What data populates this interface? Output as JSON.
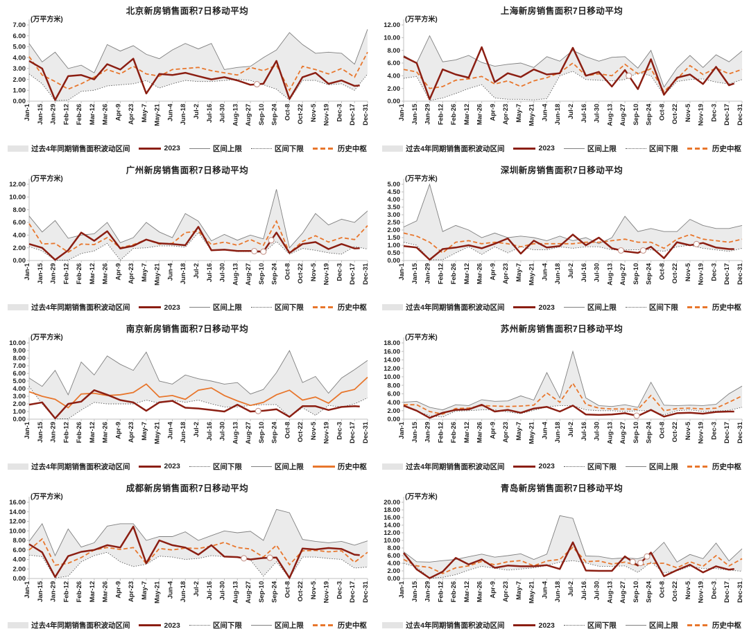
{
  "unit_label": "(万平方米)",
  "x_ticks": [
    "Jan-1",
    "Jan-15",
    "Jan-29",
    "Feb-12",
    "Feb-26",
    "Mar-12",
    "Mar-26",
    "Apr-9",
    "Apr-23",
    "May-7",
    "May-21",
    "Jun-4",
    "Jun-18",
    "Jul-2",
    "Jul-16",
    "Jul-30",
    "Aug-13",
    "Aug-27",
    "Sep-10",
    "Sep-24",
    "Oct-8",
    "Oct-22",
    "Nov-5",
    "Nov-19",
    "Dec-3",
    "Dec-17",
    "Dec-31"
  ],
  "legend_labels": {
    "band": "过去4年同期销售面积波动区间",
    "y2023": "2023",
    "upper": "区间上限",
    "lower": "区间下限",
    "central": "历史中枢"
  },
  "colors": {
    "line_2023": "#8B1E12",
    "central": "#E8762C",
    "band_fill": "#EBEBEB",
    "upper_line": "#7F7F7F",
    "lower_line": "#595959",
    "axis": "#BFBFBF",
    "text": "#1F1F1F",
    "marker_stroke": "#C49389"
  },
  "chart_data": [
    {
      "type": "line",
      "name": "beijing",
      "title": "北京新房销售面积7日移动平均",
      "unit": "(万平方米)",
      "ylim": [
        0,
        7
      ],
      "ytick_step": 1,
      "legend_order": [
        "band",
        "y2023",
        "upper",
        "lower",
        "central"
      ],
      "central_style": "dashed",
      "end_2023": 25.4,
      "markers": [
        17.5
      ],
      "series": {
        "y2023": [
          3.7,
          3.0,
          0.1,
          2.3,
          2.4,
          2.0,
          3.4,
          2.9,
          3.9,
          0.7,
          2.5,
          2.4,
          2.6,
          2.3,
          2.0,
          2.2,
          1.9,
          1.5,
          1.6,
          3.7,
          0.2,
          2.2,
          2.6,
          1.6,
          1.9,
          1.4,
          1.5
        ],
        "upper": [
          5.3,
          3.6,
          4.5,
          3.0,
          3.3,
          2.6,
          5.2,
          4.6,
          5.1,
          4.3,
          3.9,
          4.7,
          5.3,
          4.8,
          5.3,
          2.9,
          3.1,
          3.2,
          4.0,
          4.7,
          6.3,
          5.2,
          4.4,
          4.5,
          4.4,
          3.4,
          6.6
        ],
        "lower": [
          2.5,
          1.6,
          0.05,
          0.1,
          0.9,
          1.0,
          1.4,
          1.5,
          1.6,
          1.9,
          1.2,
          1.6,
          1.9,
          1.8,
          1.8,
          1.9,
          2.0,
          1.9,
          1.5,
          1.1,
          0.1,
          1.9,
          1.9,
          1.5,
          1.6,
          1.0,
          2.5
        ],
        "central": [
          4.1,
          2.4,
          1.8,
          1.1,
          1.6,
          2.2,
          2.9,
          2.5,
          3.2,
          2.5,
          2.3,
          2.9,
          3.0,
          3.1,
          2.8,
          2.6,
          2.4,
          3.1,
          2.8,
          3.3,
          1.0,
          3.2,
          2.9,
          2.5,
          3.0,
          2.2,
          4.5
        ]
      }
    },
    {
      "type": "line",
      "name": "shanghai",
      "title": "上海新房销售面积7日移动平均",
      "unit": "(万平方米)",
      "ylim": [
        0,
        12
      ],
      "ytick_step": 2,
      "legend_order": [
        "band",
        "y2023",
        "upper",
        "lower",
        "central"
      ],
      "central_style": "dashed",
      "end_2023": 25.4,
      "markers": [
        17.3
      ],
      "series": {
        "y2023": [
          7.0,
          6.0,
          0.3,
          5.0,
          4.2,
          3.7,
          8.5,
          3.0,
          4.4,
          3.8,
          5.0,
          4.2,
          4.4,
          8.4,
          4.0,
          4.6,
          2.3,
          4.9,
          1.9,
          6.6,
          1.0,
          3.7,
          4.2,
          2.7,
          5.4,
          2.5,
          3.2
        ],
        "upper": [
          7.2,
          6.0,
          10.3,
          6.2,
          6.5,
          7.2,
          6.1,
          5.5,
          5.8,
          6.0,
          5.3,
          7.0,
          6.3,
          8.0,
          7.0,
          6.3,
          6.9,
          7.0,
          5.2,
          8.0,
          2.2,
          5.2,
          7.2,
          5.3,
          7.3,
          6.2,
          7.9
        ],
        "lower": [
          3.6,
          3.9,
          0.1,
          0.5,
          1.2,
          2.0,
          2.6,
          0.5,
          0.3,
          0.3,
          0.2,
          0.4,
          4.0,
          4.7,
          3.4,
          3.3,
          3.2,
          3.4,
          4.5,
          4.0,
          1.0,
          3.1,
          3.4,
          3.5,
          3.0,
          2.7,
          3.4
        ],
        "central": [
          5.0,
          4.6,
          2.0,
          2.3,
          3.3,
          3.5,
          3.9,
          2.7,
          3.2,
          2.3,
          3.2,
          3.7,
          4.5,
          6.0,
          4.0,
          4.3,
          4.0,
          5.8,
          4.3,
          5.1,
          1.5,
          3.5,
          5.6,
          4.2,
          5.2,
          4.3,
          5.0
        ]
      }
    },
    {
      "type": "line",
      "name": "guangzhou",
      "title": "广州新房销售面积7日移动平均",
      "unit": "(万平方米)",
      "ylim": [
        0,
        12
      ],
      "ytick_step": 2,
      "legend_order": [
        "band",
        "y2023",
        "upper",
        "lower",
        "central"
      ],
      "central_style": "dashed",
      "end_2023": 25.4,
      "markers": [
        17.3,
        18.0,
        18.6
      ],
      "series": {
        "y2023": [
          2.6,
          2.0,
          0.1,
          1.6,
          4.4,
          3.1,
          4.6,
          1.9,
          2.3,
          3.3,
          2.7,
          2.6,
          2.4,
          5.3,
          1.6,
          1.7,
          1.5,
          1.5,
          1.4,
          4.4,
          1.2,
          2.6,
          2.9,
          1.8,
          2.6,
          1.9,
          2.0
        ],
        "upper": [
          7.0,
          4.5,
          6.3,
          3.5,
          4.0,
          4.2,
          6.0,
          2.8,
          3.6,
          6.0,
          4.5,
          3.6,
          7.4,
          6.2,
          3.1,
          4.1,
          3.2,
          4.0,
          3.4,
          11.2,
          2.0,
          4.3,
          7.4,
          5.6,
          6.5,
          6.0,
          7.8
        ],
        "lower": [
          2.2,
          1.5,
          0.05,
          0.05,
          1.1,
          1.5,
          2.7,
          0.05,
          1.9,
          2.0,
          2.3,
          2.3,
          2.1,
          4.4,
          1.6,
          1.7,
          1.4,
          1.4,
          1.2,
          3.0,
          1.0,
          1.9,
          1.6,
          1.2,
          1.0,
          2.2,
          1.8
        ],
        "central": [
          5.8,
          2.6,
          2.7,
          1.3,
          2.6,
          2.5,
          3.6,
          2.0,
          2.5,
          3.3,
          2.6,
          2.7,
          4.4,
          4.6,
          2.5,
          2.9,
          2.4,
          3.3,
          2.4,
          6.2,
          1.2,
          3.0,
          3.9,
          2.9,
          3.6,
          3.3,
          5.5
        ]
      }
    },
    {
      "type": "line",
      "name": "shenzhen",
      "title": "深圳新房销售面积7日移动平均",
      "unit": "(万平方米)",
      "ylim": [
        0,
        5
      ],
      "ytick_step": 0.5,
      "legend_order": [
        "band",
        "y2023",
        "upper",
        "lower",
        "central"
      ],
      "central_style": "dashed",
      "end_2023": 25.4,
      "markers": [
        16.7,
        18.4,
        22.5
      ],
      "series": {
        "y2023": [
          0.95,
          0.85,
          0.05,
          0.75,
          0.85,
          1.0,
          0.8,
          1.1,
          1.45,
          0.45,
          1.3,
          0.85,
          0.95,
          1.7,
          1.0,
          1.5,
          0.8,
          0.6,
          0.5,
          0.9,
          0.15,
          1.2,
          1.0,
          1.15,
          0.85,
          0.75,
          0.75
        ],
        "upper": [
          2.2,
          2.6,
          5.0,
          1.9,
          2.3,
          2.0,
          1.5,
          1.8,
          1.5,
          1.6,
          1.5,
          1.3,
          1.6,
          1.3,
          1.5,
          1.1,
          1.5,
          2.9,
          1.9,
          2.1,
          1.9,
          1.9,
          2.7,
          2.3,
          2.1,
          2.1,
          2.3
        ],
        "lower": [
          1.2,
          1.0,
          0.05,
          0.05,
          0.5,
          0.9,
          0.4,
          0.9,
          0.5,
          0.9,
          0.7,
          0.7,
          0.9,
          0.8,
          0.9,
          0.9,
          0.7,
          0.7,
          0.7,
          0.7,
          0.6,
          0.9,
          1.0,
          0.8,
          0.7,
          0.6,
          0.8
        ],
        "central": [
          1.8,
          1.6,
          1.2,
          0.5,
          1.2,
          1.3,
          1.1,
          1.2,
          1.1,
          0.9,
          1.1,
          1.1,
          1.1,
          1.1,
          1.2,
          1.2,
          1.3,
          1.4,
          1.2,
          1.2,
          0.8,
          1.4,
          1.7,
          1.4,
          1.3,
          1.2,
          1.4
        ]
      }
    },
    {
      "type": "line",
      "name": "nanjing",
      "title": "南京新房销售面积7日移动平均",
      "unit": "(万平方米)",
      "ylim": [
        0,
        10
      ],
      "ytick_step": 1,
      "legend_order": [
        "band",
        "y2023",
        "lower",
        "upper",
        "central"
      ],
      "central_style": "solid",
      "end_2023": 25.4,
      "markers": [
        17.6
      ],
      "series": {
        "y2023": [
          1.9,
          2.2,
          0.1,
          2.0,
          2.3,
          3.8,
          3.2,
          2.5,
          2.2,
          1.1,
          2.2,
          2.4,
          1.5,
          1.4,
          1.2,
          1.0,
          1.9,
          1.0,
          1.1,
          1.3,
          0.3,
          1.7,
          1.7,
          1.2,
          1.6,
          1.7,
          1.6
        ],
        "upper": [
          5.4,
          4.3,
          6.4,
          3.2,
          7.5,
          5.8,
          8.3,
          7.2,
          6.4,
          8.8,
          5.0,
          4.6,
          5.8,
          5.3,
          5.0,
          4.6,
          4.8,
          3.3,
          3.9,
          6.1,
          9.0,
          4.8,
          5.6,
          3.4,
          5.4,
          6.5,
          7.7
        ],
        "lower": [
          4.3,
          2.0,
          0.05,
          0.05,
          1.2,
          2.2,
          2.0,
          2.0,
          2.0,
          2.5,
          2.1,
          2.5,
          2.2,
          2.5,
          2.0,
          1.6,
          1.6,
          1.8,
          1.9,
          1.9,
          0.3,
          1.5,
          0.5,
          1.8,
          1.6,
          2.0,
          2.8
        ],
        "central": [
          3.6,
          3.0,
          2.6,
          1.5,
          3.3,
          3.4,
          3.1,
          3.2,
          3.5,
          4.6,
          2.9,
          3.1,
          2.6,
          3.8,
          4.1,
          3.1,
          2.4,
          1.8,
          2.2,
          3.2,
          3.8,
          2.5,
          2.9,
          2.1,
          3.5,
          3.9,
          5.5
        ]
      }
    },
    {
      "type": "line",
      "name": "suzhou",
      "title": "苏州新房销售面积7日移动平均",
      "unit": "(万平方米)",
      "ylim": [
        0,
        18
      ],
      "ytick_step": 2,
      "legend_order": [
        "band",
        "y2023",
        "lower",
        "upper",
        "central"
      ],
      "central_style": "dashed",
      "end_2023": 25.4,
      "markers": [
        17.9
      ],
      "series": {
        "y2023": [
          3.2,
          2.0,
          0.3,
          1.5,
          2.2,
          2.3,
          3.4,
          1.8,
          2.2,
          1.5,
          2.5,
          2.9,
          1.8,
          3.2,
          1.1,
          1.0,
          1.1,
          1.4,
          0.75,
          2.2,
          0.6,
          1.4,
          1.5,
          1.3,
          1.7,
          1.8,
          1.8
        ],
        "upper": [
          4.0,
          4.2,
          2.8,
          2.2,
          3.4,
          3.2,
          4.6,
          4.2,
          4.3,
          5.5,
          4.5,
          11.0,
          5.0,
          16.0,
          5.0,
          3.2,
          3.0,
          3.4,
          2.8,
          8.7,
          3.3,
          3.2,
          3.3,
          3.2,
          3.5,
          6.0,
          7.8
        ],
        "lower": [
          3.0,
          1.9,
          0.8,
          0.5,
          1.9,
          2.0,
          2.2,
          2.2,
          1.7,
          1.3,
          2.1,
          2.9,
          3.2,
          3.2,
          2.2,
          2.0,
          2.0,
          1.8,
          2.0,
          2.0,
          1.0,
          2.0,
          2.2,
          1.8,
          1.9,
          2.1,
          2.8
        ],
        "central": [
          3.4,
          3.4,
          1.8,
          1.2,
          2.5,
          2.6,
          3.2,
          3.1,
          3.0,
          3.1,
          3.3,
          6.2,
          4.0,
          8.5,
          3.5,
          2.6,
          2.4,
          2.4,
          2.3,
          5.6,
          2.0,
          2.5,
          2.6,
          2.4,
          2.6,
          4.0,
          5.5
        ]
      }
    },
    {
      "type": "line",
      "name": "chengdu",
      "title": "成都新房销售面积7日移动平均",
      "unit": "(万平方米)",
      "ylim": [
        0,
        16
      ],
      "ytick_step": 2,
      "legend_order": [
        "band",
        "y2023",
        "lower",
        "upper",
        "central"
      ],
      "central_style": "dashed",
      "end_2023": 25.4,
      "markers": [
        16.5,
        18.5
      ],
      "series": {
        "y2023": [
          7.2,
          5.5,
          0.3,
          4.7,
          5.6,
          6.0,
          7.0,
          6.5,
          10.9,
          3.2,
          8.0,
          7.0,
          6.5,
          5.0,
          7.0,
          4.6,
          4.5,
          4.0,
          4.3,
          4.4,
          0.1,
          6.3,
          6.1,
          6.4,
          6.2,
          5.0,
          4.8
        ],
        "upper": [
          7.8,
          11.5,
          4.8,
          10.4,
          6.6,
          7.5,
          11.0,
          11.5,
          11.5,
          8.0,
          8.8,
          8.8,
          9.8,
          8.0,
          9.0,
          10.0,
          9.6,
          9.9,
          8.0,
          14.5,
          13.8,
          8.2,
          7.8,
          7.5,
          7.8,
          7.0,
          7.9
        ],
        "lower": [
          4.9,
          4.6,
          0.1,
          0.5,
          3.5,
          4.8,
          5.5,
          3.5,
          2.5,
          3.0,
          4.7,
          4.5,
          4.0,
          4.2,
          4.8,
          4.6,
          4.5,
          3.9,
          0.5,
          3.5,
          0.1,
          4.5,
          4.5,
          4.2,
          4.0,
          2.2,
          2.4
        ],
        "central": [
          6.0,
          8.3,
          2.8,
          3.2,
          4.4,
          6.0,
          6.5,
          6.1,
          6.5,
          3.1,
          6.3,
          6.0,
          6.4,
          6.3,
          6.8,
          7.6,
          6.5,
          6.2,
          4.5,
          7.0,
          2.9,
          5.8,
          5.9,
          5.6,
          5.8,
          3.4,
          5.5
        ]
      }
    },
    {
      "type": "line",
      "name": "qingdao",
      "title": "青岛新房销售面积7日移动平均",
      "unit": "(万平方米)",
      "ylim": [
        0,
        20
      ],
      "ytick_step": 2,
      "legend_order": [
        "band",
        "y2023",
        "lower",
        "upper",
        "central"
      ],
      "central_style": "dashed",
      "end_2023": 25.4,
      "markers": [
        17.6,
        18.2,
        18.7
      ],
      "series": {
        "y2023": [
          6.7,
          2.4,
          0.1,
          1.8,
          5.4,
          3.7,
          5.0,
          2.8,
          3.4,
          3.2,
          3.2,
          3.5,
          2.5,
          9.5,
          2.1,
          2.0,
          2.0,
          5.8,
          3.4,
          6.8,
          0.6,
          2.2,
          3.6,
          1.6,
          3.2,
          2.3,
          2.8
        ],
        "upper": [
          7.0,
          4.4,
          4.3,
          4.7,
          5.0,
          5.7,
          6.4,
          5.6,
          6.0,
          6.5,
          5.0,
          6.4,
          16.5,
          15.8,
          5.9,
          5.8,
          5.2,
          5.4,
          5.2,
          6.2,
          9.5,
          4.3,
          6.3,
          5.2,
          9.3,
          4.6,
          7.8
        ],
        "lower": [
          4.0,
          3.0,
          0.1,
          0.3,
          1.0,
          2.2,
          3.2,
          2.7,
          2.2,
          2.5,
          2.8,
          3.4,
          4.3,
          4.7,
          4.1,
          3.2,
          3.2,
          3.3,
          1.6,
          4.3,
          1.5,
          2.0,
          3.2,
          2.6,
          2.6,
          2.2,
          1.9
        ],
        "central": [
          5.0,
          3.3,
          2.9,
          1.3,
          2.8,
          3.3,
          4.5,
          3.6,
          4.4,
          4.7,
          3.3,
          4.6,
          5.0,
          8.2,
          4.4,
          4.6,
          3.8,
          4.3,
          3.4,
          4.0,
          4.0,
          2.8,
          4.4,
          3.2,
          6.0,
          3.3,
          5.2
        ]
      }
    }
  ]
}
